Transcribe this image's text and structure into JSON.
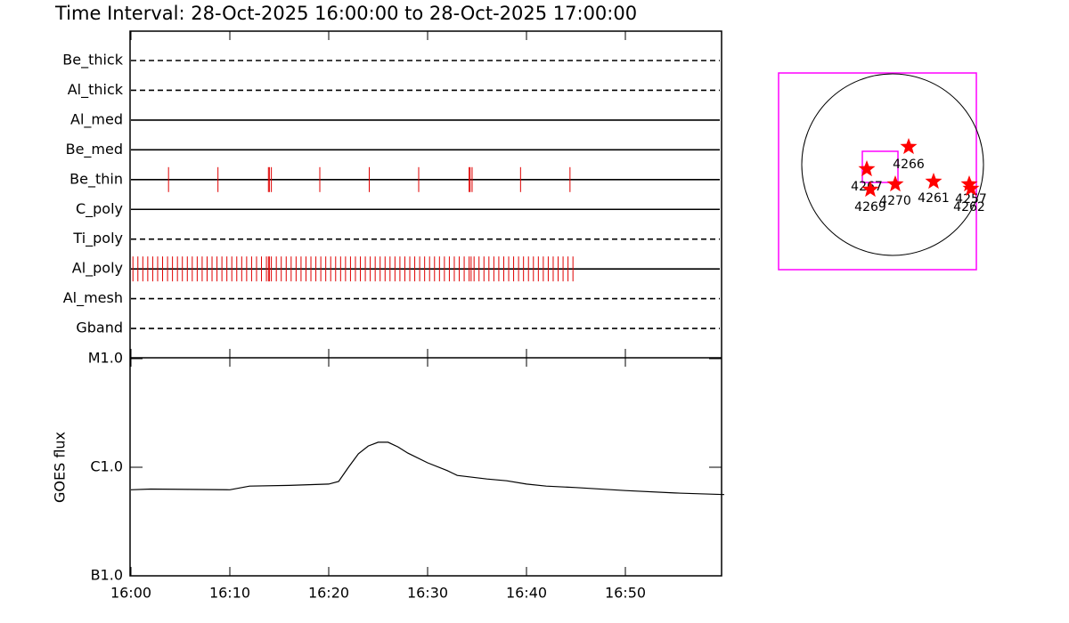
{
  "chart_data": [
    {
      "type": "timeline",
      "title": "Time Interval: 28-Oct-2025 16:00:00 to 28-Oct-2025 17:00:00",
      "xlim": [
        0,
        60
      ],
      "color": "#e00000",
      "rows": [
        {
          "name": "Be_thick",
          "dashed": true,
          "x": []
        },
        {
          "name": "Al_thick",
          "dashed": true,
          "x": []
        },
        {
          "name": "Al_med",
          "dashed": false,
          "x": []
        },
        {
          "name": "Be_med",
          "dashed": false,
          "x": []
        },
        {
          "name": "Be_thin",
          "dashed": false,
          "x": [
            3.8,
            8.8,
            13.9,
            14.0,
            14.2,
            19.1,
            24.1,
            29.1,
            34.2,
            34.3,
            34.5,
            39.4,
            44.4
          ]
        },
        {
          "name": "C_poly",
          "dashed": false,
          "x": []
        },
        {
          "name": "Ti_poly",
          "dashed": true,
          "x": []
        },
        {
          "name": "Al_poly",
          "dashed": false,
          "x": [
            0.2,
            0.7,
            1.2,
            1.7,
            2.2,
            2.7,
            3.2,
            3.7,
            4.2,
            4.7,
            5.2,
            5.7,
            6.2,
            6.7,
            7.2,
            7.7,
            8.2,
            8.7,
            9.2,
            9.7,
            10.2,
            10.7,
            11.2,
            11.7,
            12.2,
            12.7,
            13.2,
            13.7,
            13.9,
            14.0,
            14.2,
            14.7,
            15.2,
            15.7,
            16.2,
            16.7,
            17.2,
            17.7,
            18.2,
            18.7,
            19.2,
            19.7,
            20.2,
            20.7,
            21.2,
            21.7,
            22.2,
            22.7,
            23.2,
            23.7,
            24.2,
            24.7,
            25.2,
            25.7,
            26.2,
            26.7,
            27.2,
            27.7,
            28.2,
            28.7,
            29.2,
            29.7,
            30.2,
            30.7,
            31.2,
            31.7,
            32.2,
            32.7,
            33.2,
            33.7,
            34.2,
            34.4,
            34.7,
            35.2,
            35.7,
            36.2,
            36.7,
            37.2,
            37.7,
            38.2,
            38.7,
            39.2,
            39.7,
            40.2,
            40.7,
            41.2,
            41.7,
            42.2,
            42.7,
            43.2,
            43.7,
            44.2,
            44.7
          ]
        },
        {
          "name": "Al_mesh",
          "dashed": true,
          "x": []
        },
        {
          "name": "Gband",
          "dashed": true,
          "x": []
        }
      ]
    },
    {
      "type": "line",
      "ylabel": "GOES flux",
      "log": true,
      "color": "#000000",
      "xlim": [
        0,
        60
      ],
      "xticks": [
        {
          "value": 0,
          "label": "16:00"
        },
        {
          "value": 10,
          "label": "16:10"
        },
        {
          "value": 20,
          "label": "16:20"
        },
        {
          "value": 30,
          "label": "16:30"
        },
        {
          "value": 40,
          "label": "16:40"
        },
        {
          "value": 50,
          "label": "16:50"
        }
      ],
      "ylim": [
        1e-07,
        1e-05
      ],
      "yticks": [
        {
          "value": 1e-07,
          "label": "B1.0"
        },
        {
          "value": 1e-06,
          "label": "C1.0"
        },
        {
          "value": 1e-05,
          "label": "M1.0"
        }
      ],
      "x": [
        0,
        2,
        10,
        12,
        16,
        20,
        21,
        22,
        23,
        24,
        25,
        26,
        27,
        28,
        30,
        32,
        33,
        36,
        38,
        40,
        42,
        45,
        50,
        55,
        60
      ],
      "values": [
        6.2e-07,
        6.3e-07,
        6.2e-07,
        6.7e-07,
        6.8e-07,
        7e-07,
        7.4e-07,
        1e-06,
        1.33e-06,
        1.57e-06,
        1.7e-06,
        1.7e-06,
        1.54e-06,
        1.35e-06,
        1.1e-06,
        9.3e-07,
        8.4e-07,
        7.8e-07,
        7.5e-07,
        7e-07,
        6.7e-07,
        6.5e-07,
        6.1e-07,
        5.8e-07,
        5.6e-07
      ]
    },
    {
      "type": "map",
      "color": "#ff0000",
      "frame_color": "#ff00ff",
      "regions": [
        "4266",
        "4267",
        "4269",
        "4270",
        "4261",
        "4257",
        "4262"
      ]
    }
  ]
}
